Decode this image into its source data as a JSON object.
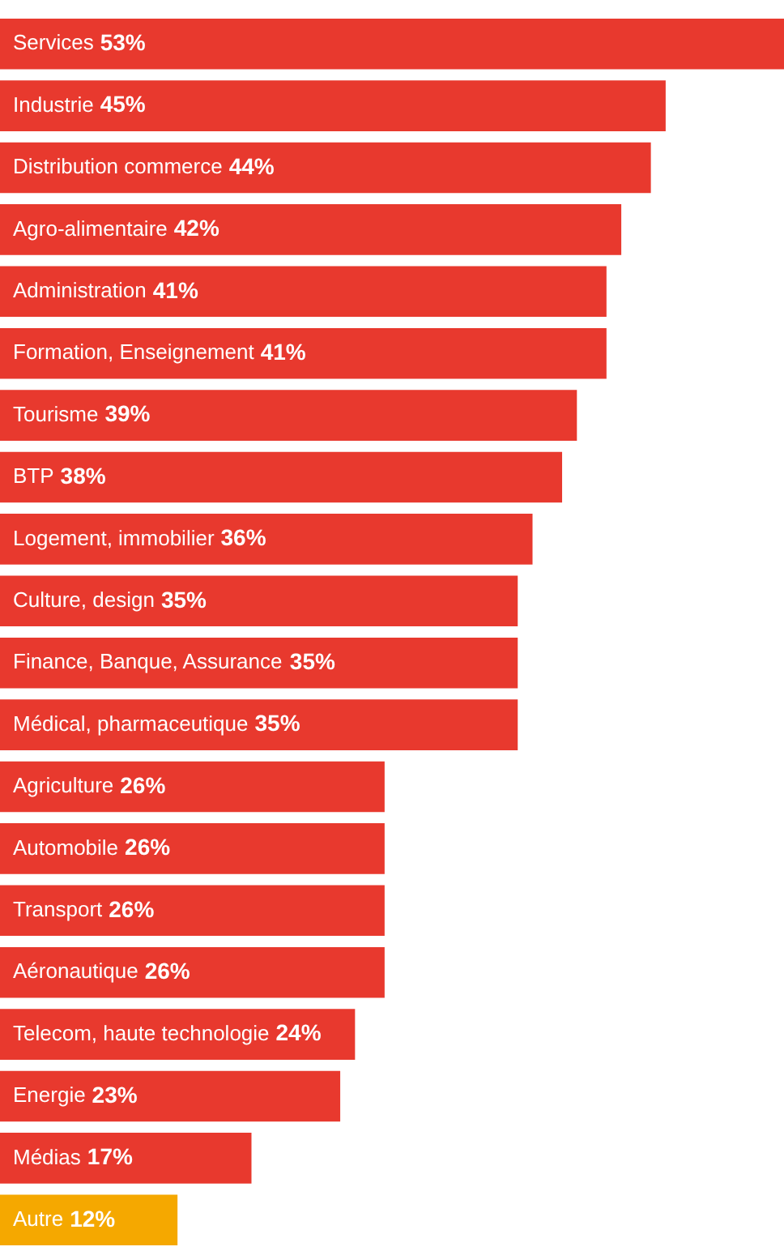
{
  "chart_data": {
    "type": "bar",
    "orientation": "horizontal",
    "categories": [
      "Services",
      "Industrie",
      "Distribution commerce",
      "Agro-alimentaire",
      "Administration",
      "Formation, Enseignement",
      "Tourisme",
      "BTP",
      "Logement, immobilier",
      "Culture, design",
      "Finance, Banque, Assurance",
      "Médical, pharmaceutique",
      "Agriculture",
      "Automobile",
      "Transport",
      "Aéronautique",
      "Telecom, haute technologie",
      "Energie",
      "Médias",
      "Autre"
    ],
    "values": [
      53,
      45,
      44,
      42,
      41,
      41,
      39,
      38,
      36,
      35,
      35,
      35,
      26,
      26,
      26,
      26,
      24,
      23,
      17,
      12
    ],
    "value_labels": [
      "53%",
      "45%",
      "44%",
      "42%",
      "41%",
      "41%",
      "39%",
      "38%",
      "36%",
      "35%",
      "35%",
      "35%",
      "26%",
      "26%",
      "26%",
      "26%",
      "24%",
      "23%",
      "17%",
      "12%"
    ],
    "colors": [
      "#e8392e",
      "#e8392e",
      "#e8392e",
      "#e8392e",
      "#e8392e",
      "#e8392e",
      "#e8392e",
      "#e8392e",
      "#e8392e",
      "#e8392e",
      "#e8392e",
      "#e8392e",
      "#e8392e",
      "#e8392e",
      "#e8392e",
      "#e8392e",
      "#e8392e",
      "#e8392e",
      "#e8392e",
      "#f5a800"
    ],
    "tick_labels": false,
    "legend": false
  }
}
